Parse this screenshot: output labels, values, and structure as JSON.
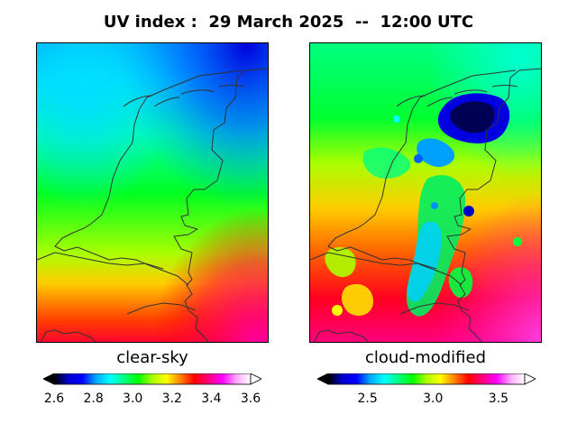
{
  "title": "UV index :  29 March 2025  --  12:00 UTC",
  "panels": [
    {
      "caption": "clear-sky",
      "colorbar": {
        "min": 2.6,
        "max": 3.6,
        "ticks": [
          "2.6",
          "2.8",
          "3.0",
          "3.2",
          "3.4",
          "3.6"
        ],
        "extend": "both"
      }
    },
    {
      "caption": "cloud-modified",
      "colorbar": {
        "min": 2.2,
        "max": 3.7,
        "ticks": [
          "2.5",
          "3.0",
          "3.5"
        ],
        "tick_values": [
          2.5,
          3.0,
          3.5
        ],
        "extend": "both"
      }
    }
  ],
  "colormap": [
    "#000000",
    "#0000cc",
    "#0000ff",
    "#00aaff",
    "#00ffff",
    "#00ff80",
    "#00ff00",
    "#aaff00",
    "#ffff00",
    "#ff8000",
    "#ff0000",
    "#ff0080",
    "#ff00ff",
    "#ffaaff",
    "#ffffff"
  ],
  "map_region": "Netherlands"
}
